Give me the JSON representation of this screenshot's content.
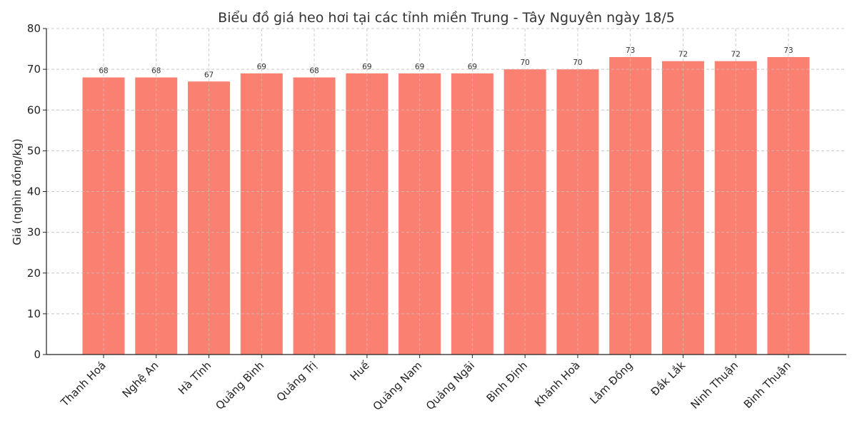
{
  "chart_data": {
    "type": "bar",
    "title": "Biểu đồ giá heo hơi tại các tỉnh miền Trung - Tây Nguyên ngày 18/5",
    "xlabel": "",
    "ylabel": "Giá (nghìn đồng/kg)",
    "categories": [
      "Thanh Hoá",
      "Nghệ An",
      "Hà Tĩnh",
      "Quảng Bình",
      "Quảng Trị",
      "Huế",
      "Quảng Nam",
      "Quảng Ngãi",
      "Bình Định",
      "Khánh Hoà",
      "Lâm Đồng",
      "Đắk Lắk",
      "Ninh Thuận",
      "Bình Thuận"
    ],
    "values": [
      68,
      68,
      67,
      69,
      68,
      69,
      69,
      69,
      70,
      70,
      73,
      72,
      72,
      73
    ],
    "ylim": [
      0,
      80
    ],
    "yticks": [
      0,
      10,
      20,
      30,
      40,
      50,
      60,
      70,
      80
    ],
    "grid": true,
    "grid_style": "dashed",
    "legend": null,
    "bar_color": "#fa8072",
    "data_labels": true,
    "xtick_rotation": 45
  }
}
